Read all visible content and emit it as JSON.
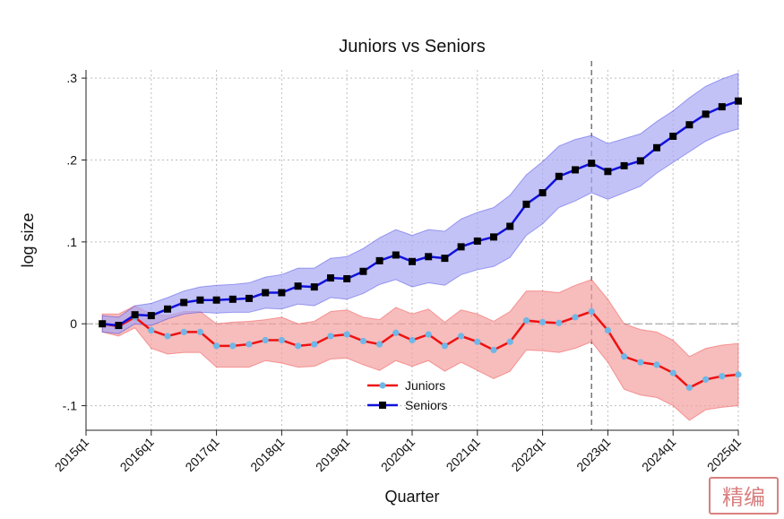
{
  "chart_data": {
    "type": "line",
    "title": "Juniors vs Seniors",
    "xlabel": "Quarter",
    "ylabel": "log size",
    "x_ticks": [
      "2015q1",
      "2016q1",
      "2017q1",
      "2018q1",
      "2019q1",
      "2020q1",
      "2021q1",
      "2022q1",
      "2023q1",
      "2024q1",
      "2025q1"
    ],
    "y_ticks": [
      {
        "value": -0.1,
        "label": "-.1"
      },
      {
        "value": 0,
        "label": "0"
      },
      {
        "value": 0.1,
        "label": ".1"
      },
      {
        "value": 0.2,
        "label": ".2"
      },
      {
        "value": 0.3,
        "label": ".3"
      }
    ],
    "ylim": [
      -0.13,
      0.31
    ],
    "xlim": [
      "2015q1",
      "2025q1"
    ],
    "grid": true,
    "reference_line_y": 0,
    "vertical_line_x": "2022q4",
    "legend_position": "bottom-center",
    "x": [
      "2015q2",
      "2015q3",
      "2015q4",
      "2016q1",
      "2016q2",
      "2016q3",
      "2016q4",
      "2017q1",
      "2017q2",
      "2017q3",
      "2017q4",
      "2018q1",
      "2018q2",
      "2018q3",
      "2018q4",
      "2019q1",
      "2019q2",
      "2019q3",
      "2019q4",
      "2020q1",
      "2020q2",
      "2020q3",
      "2020q4",
      "2021q1",
      "2021q2",
      "2021q3",
      "2021q4",
      "2022q1",
      "2022q2",
      "2022q3",
      "2022q4",
      "2023q1",
      "2023q2",
      "2023q3",
      "2023q4",
      "2024q1",
      "2024q2",
      "2024q3",
      "2024q4",
      "2025q1"
    ],
    "series": [
      {
        "name": "Juniors",
        "color": "#ee1111",
        "marker_color": "#6fb7e6",
        "band_color": "#f4a0a0",
        "values": [
          0.0,
          -0.003,
          0.008,
          -0.008,
          -0.015,
          -0.01,
          -0.01,
          -0.027,
          -0.027,
          -0.025,
          -0.02,
          -0.02,
          -0.027,
          -0.025,
          -0.015,
          -0.013,
          -0.021,
          -0.025,
          -0.011,
          -0.02,
          -0.013,
          -0.027,
          -0.015,
          -0.022,
          -0.032,
          -0.022,
          0.004,
          0.002,
          0.001,
          0.008,
          0.015,
          -0.008,
          -0.04,
          -0.047,
          -0.05,
          -0.06,
          -0.078,
          -0.068,
          -0.064,
          -0.062
        ],
        "lower": [
          -0.01,
          -0.015,
          -0.005,
          -0.03,
          -0.037,
          -0.035,
          -0.035,
          -0.053,
          -0.053,
          -0.053,
          -0.045,
          -0.048,
          -0.053,
          -0.052,
          -0.043,
          -0.042,
          -0.05,
          -0.057,
          -0.045,
          -0.052,
          -0.045,
          -0.058,
          -0.047,
          -0.057,
          -0.067,
          -0.058,
          -0.032,
          -0.033,
          -0.035,
          -0.03,
          -0.022,
          -0.047,
          -0.08,
          -0.087,
          -0.09,
          -0.1,
          -0.118,
          -0.105,
          -0.102,
          -0.1
        ],
        "upper": [
          0.012,
          0.012,
          0.022,
          0.012,
          0.01,
          0.015,
          0.015,
          0.0,
          0.002,
          0.003,
          0.005,
          0.008,
          0.0,
          0.003,
          0.015,
          0.017,
          0.008,
          0.005,
          0.02,
          0.012,
          0.018,
          0.002,
          0.017,
          0.012,
          0.003,
          0.015,
          0.04,
          0.04,
          0.038,
          0.047,
          0.054,
          0.03,
          0.0,
          -0.007,
          -0.01,
          -0.02,
          -0.04,
          -0.03,
          -0.026,
          -0.024
        ]
      },
      {
        "name": "Seniors",
        "color": "#1111dd",
        "marker_color": "#000000",
        "band_color": "#a8a8f4",
        "values": [
          0.0,
          -0.002,
          0.011,
          0.01,
          0.018,
          0.026,
          0.029,
          0.029,
          0.03,
          0.031,
          0.038,
          0.038,
          0.046,
          0.045,
          0.056,
          0.055,
          0.064,
          0.077,
          0.084,
          0.076,
          0.082,
          0.08,
          0.094,
          0.101,
          0.106,
          0.119,
          0.146,
          0.16,
          0.18,
          0.188,
          0.196,
          0.186,
          0.193,
          0.199,
          0.215,
          0.229,
          0.243,
          0.256,
          0.265,
          0.272
        ],
        "lower": [
          -0.01,
          -0.012,
          0.0,
          -0.002,
          0.006,
          0.012,
          0.014,
          0.013,
          0.014,
          0.014,
          0.019,
          0.018,
          0.024,
          0.022,
          0.032,
          0.03,
          0.037,
          0.048,
          0.054,
          0.045,
          0.05,
          0.047,
          0.06,
          0.066,
          0.07,
          0.081,
          0.108,
          0.122,
          0.142,
          0.15,
          0.16,
          0.152,
          0.16,
          0.168,
          0.184,
          0.197,
          0.21,
          0.223,
          0.232,
          0.238
        ],
        "upper": [
          0.01,
          0.008,
          0.022,
          0.025,
          0.032,
          0.04,
          0.045,
          0.047,
          0.048,
          0.05,
          0.057,
          0.06,
          0.068,
          0.068,
          0.08,
          0.082,
          0.092,
          0.105,
          0.115,
          0.108,
          0.115,
          0.113,
          0.128,
          0.136,
          0.142,
          0.157,
          0.182,
          0.198,
          0.217,
          0.225,
          0.23,
          0.22,
          0.226,
          0.232,
          0.247,
          0.26,
          0.276,
          0.29,
          0.299,
          0.306
        ]
      }
    ]
  },
  "watermark": {
    "text": "精编",
    "color": "#d98080"
  }
}
